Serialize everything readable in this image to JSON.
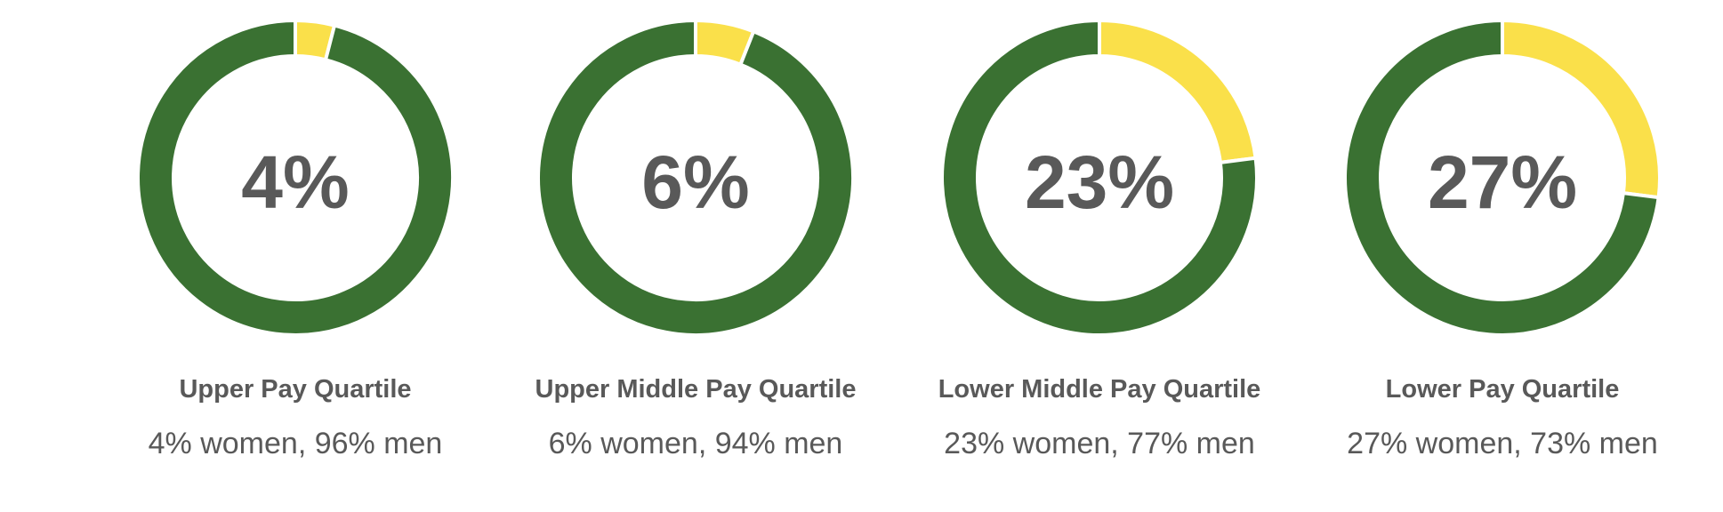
{
  "colors": {
    "women": "#FAE04A",
    "men": "#3A7132",
    "text": "#595959",
    "separator": "#FFFFFF"
  },
  "chart_data": [
    {
      "type": "pie",
      "variant": "donut",
      "center_label": "4%",
      "title": "Upper Pay Quartile",
      "subtitle": "4% women, 96% men",
      "series": [
        {
          "name": "women",
          "value": 4
        },
        {
          "name": "men",
          "value": 96
        }
      ]
    },
    {
      "type": "pie",
      "variant": "donut",
      "center_label": "6%",
      "title": "Upper Middle Pay Quartile",
      "subtitle": "6% women, 94% men",
      "series": [
        {
          "name": "women",
          "value": 6
        },
        {
          "name": "men",
          "value": 94
        }
      ]
    },
    {
      "type": "pie",
      "variant": "donut",
      "center_label": "23%",
      "title": "Lower Middle Pay Quartile",
      "subtitle": "23% women, 77% men",
      "series": [
        {
          "name": "women",
          "value": 23
        },
        {
          "name": "men",
          "value": 77
        }
      ]
    },
    {
      "type": "pie",
      "variant": "donut",
      "center_label": "27%",
      "title": "Lower Pay Quartile",
      "subtitle": "27% women, 73% men",
      "series": [
        {
          "name": "women",
          "value": 27
        },
        {
          "name": "men",
          "value": 73
        }
      ]
    }
  ]
}
